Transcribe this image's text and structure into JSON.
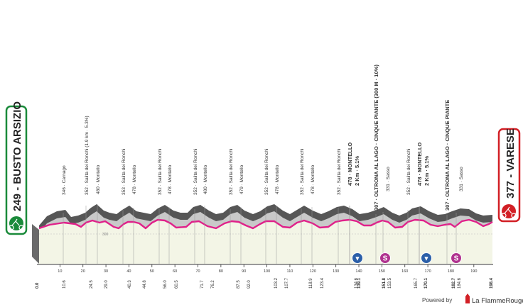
{
  "start": {
    "elevation": "249",
    "name": "BUSTO ARSIZIO"
  },
  "finish": {
    "elevation": "377",
    "name": "VARESE"
  },
  "reference_elevation": "300",
  "axis": {
    "km_ticks": [
      "10",
      "20",
      "30",
      "40",
      "50",
      "60",
      "70",
      "80",
      "90",
      "100",
      "110",
      "120",
      "130",
      "140",
      "150",
      "160",
      "170",
      "180",
      "190"
    ],
    "distance_labels": [
      "0.0",
      "10.6",
      "24.5",
      "29.0",
      "40.3",
      "44.8",
      "56.0",
      "60.5",
      "71.7",
      "76.2",
      "87.5",
      "92.0",
      "103.2",
      "107.7",
      "118.9",
      "123.4",
      "134.6",
      "139.1",
      "151.8",
      "153.5",
      "165.7",
      "170.1",
      "182.7",
      "184.6",
      "198.4"
    ]
  },
  "waypoints": [
    {
      "text": "346 · Carnago"
    },
    {
      "text": "352 · Salita dei Ronchi (1.9 km · 5.3%)"
    },
    {
      "text": "480 · Montello"
    },
    {
      "text": "353 · Salita dei Ronchi"
    },
    {
      "text": "478 · Montello"
    },
    {
      "text": "352 · Salita dei Ronchi"
    },
    {
      "text": "478 · Montello"
    },
    {
      "text": "352 · Salita dei Ronchi"
    },
    {
      "text": "480 · Montello"
    },
    {
      "text": "352 · Salita dei Ronchi"
    },
    {
      "text": "479 · Montello"
    },
    {
      "text": "352 · Salita dei Ronchi"
    },
    {
      "text": "478 · Montello"
    },
    {
      "text": "352 · Salita dei Ronchi"
    },
    {
      "text": "478 · Montello"
    },
    {
      "text": "352 · Salita dei Ronchi"
    },
    {
      "text": "478 · MONTELLO"
    },
    {
      "text": "2 Km · 5.1%"
    },
    {
      "text": "307 · OLTRONA AL LAGO · CINQUE PIANTE (300 M · 10%)"
    },
    {
      "text": "331 · Sasso"
    },
    {
      "text": "352 · Salita dei Ronchi"
    },
    {
      "text": "478 · MONTELLO"
    },
    {
      "text": "2 Km · 5.1%"
    },
    {
      "text": "307 · OLTRONA AL LAGO · CINQUE PIANTE"
    },
    {
      "text": "331 · Sasso"
    }
  ],
  "sector_markers": [
    {
      "type": "climb",
      "label": "▼"
    },
    {
      "type": "sprint",
      "label": "S"
    },
    {
      "type": "climb",
      "label": "▼"
    },
    {
      "type": "sprint",
      "label": "S"
    }
  ],
  "footer": {
    "powered_by": "Powered by",
    "brand": "La FlammeRouge"
  },
  "colors": {
    "accent_start": "#1a8a3a",
    "accent_finish": "#d21f25",
    "route": "#e0218a",
    "relief_dark": "#4a4a4a",
    "relief_light": "#c7c7c7",
    "base_fill": "#f3f5e6"
  }
}
